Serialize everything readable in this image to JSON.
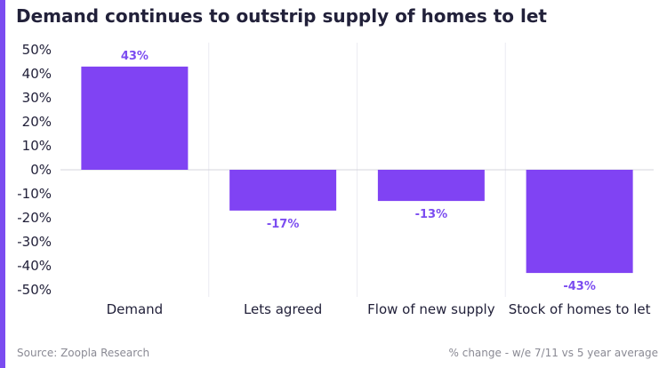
{
  "colors": {
    "accent": "#7b4cf0",
    "bar": "#8043f3",
    "label": "#7b4cf0",
    "text": "#22213a",
    "footer": "#8a8a94",
    "grid": "#ececf2",
    "zero_line": "#d4d4dc"
  },
  "chart_data": {
    "type": "bar",
    "title": "Demand continues to outstrip supply of homes to let",
    "categories": [
      "Demand",
      "Lets agreed",
      "Flow of new supply",
      "Stock of homes to let"
    ],
    "values": [
      43,
      -17,
      -13,
      -43
    ],
    "data_labels": [
      "43%",
      "-17%",
      "-13%",
      "-43%"
    ],
    "ylim": [
      -50,
      50
    ],
    "yticks": [
      50,
      40,
      30,
      20,
      10,
      0,
      -10,
      -20,
      -30,
      -40,
      -50
    ],
    "ytick_labels": [
      "50%",
      "40%",
      "30%",
      "20%",
      "10%",
      "0%",
      "-10%",
      "-20%",
      "-30%",
      "-40%",
      "-50%"
    ],
    "grid": "vertical separators between categories",
    "legend": "none"
  },
  "footer": {
    "source": "Source: Zoopla Research",
    "note": "% change - w/e 7/11 vs 5 year average"
  }
}
